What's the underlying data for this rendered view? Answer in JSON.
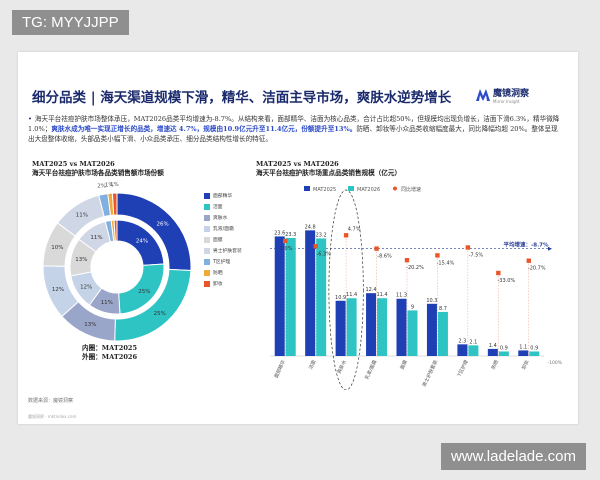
{
  "watermark_top": "TG: MYYJJPP",
  "watermark_bottom": "www.ladelade.com",
  "title": "细分品类 | 海天渠道规模下滑，精华、洁面主导市场，爽肤水逆势增长",
  "logo": {
    "name": "魔镜洞察",
    "sub": "Mirror Insight"
  },
  "summary": {
    "part1": "海天平台祛痘护肤市场整体承压，MAT2026品类平均增速为-8.7%。从结构来看，面部精华、洁面为核心品类，合计占比超50%，但规模均出现负增长，洁面下滑6.3%，精华微降1.0%；",
    "part2": "爽肤水成为唯一实现正增长的品类，增速达 4.7%，规模由10.9亿元升至11.4亿元，份额提升至13%。",
    "part3": "防晒、卸妆等小众品类收缩幅度最大，同比降幅均超 20%。整体呈现出大盘整体收缩，头部品类小幅下滑、小众品类承压、细分品类结构性增长的特征。"
  },
  "donut_title": {
    "line1": "MAT2025 vs MAT2026",
    "line2": "海天平台祛痘护肤市场各品类销售额市场份额"
  },
  "donut_note": {
    "inner": "内圈：MAT2025",
    "outer": "外圈：MAT2026"
  },
  "bar_title": {
    "line1": "MAT2025 vs MAT2026",
    "line2": "海天平台祛痘护肤市场重点品类销售规模（亿元）"
  },
  "source": "数据来源：魔镜洞察",
  "footer": "魔镜洞察 · mktindex.com",
  "colors": {
    "mat2025": "#1f3fb5",
    "mat2026": "#2ec4c4",
    "growth": "#e8562a",
    "title": "#1a2a6c"
  },
  "chart_data": [
    {
      "type": "pie",
      "legend": [
        "面部精华",
        "洁面",
        "爽肤水",
        "乳液/面霜",
        "面膜",
        "男士护肤套装",
        "T区护理",
        "防晒",
        "卸妆"
      ],
      "colors": [
        "#1f3fb5",
        "#2ec4c4",
        "#9aa6c9",
        "#c5d3e8",
        "#d9d9d9",
        "#cfd6e6",
        "#7fb0e0",
        "#f2a93b",
        "#e8562a"
      ],
      "inner_label": "MAT2025",
      "outer_label": "MAT2026",
      "inner_values": [
        24,
        25,
        11,
        12,
        13,
        11,
        2,
        1,
        1
      ],
      "outer_values": [
        26,
        25,
        13,
        12,
        10,
        11,
        2,
        1,
        1
      ],
      "inner_labels": [
        "24%",
        "25%",
        "11%",
        "12%",
        "13%",
        "11%",
        "",
        "",
        ""
      ],
      "outer_labels": [
        "26%",
        "25%",
        "13%",
        "12%",
        "10%",
        "11%",
        "2%",
        "1%",
        "1%"
      ]
    },
    {
      "type": "bar",
      "categories": [
        "面部精华",
        "洁面",
        "爽肤水",
        "乳液/面霜",
        "面膜",
        "男士护肤套装",
        "T区护理",
        "防晒",
        "卸妆"
      ],
      "series": [
        {
          "name": "MAT2025",
          "values": [
            23.6,
            24.8,
            10.9,
            12.4,
            11.3,
            10.3,
            2.3,
            1.4,
            1.1
          ]
        },
        {
          "name": "MAT2026",
          "values": [
            23.3,
            23.2,
            11.4,
            11.4,
            9.0,
            8.7,
            2.1,
            0.9,
            0.9
          ]
        }
      ],
      "growth_name": "同比增速",
      "growth": [
        -1.0,
        -6.3,
        4.7,
        -8.6,
        -20.2,
        -15.4,
        -7.5,
        -33.0,
        -20.7
      ],
      "growth_labels": [
        "-1.0%",
        "-6.3%",
        "4.7%",
        "-8.6%",
        "-20.2%",
        "-15.4%",
        "-7.5%",
        "-33.0%",
        "-20.7%"
      ],
      "avg_growth": -8.7,
      "avg_label": "平均增速：-8.7%",
      "right_axis_label": "-100%",
      "ylim": [
        0,
        30
      ],
      "growth_lim": [
        -100,
        12
      ]
    }
  ]
}
